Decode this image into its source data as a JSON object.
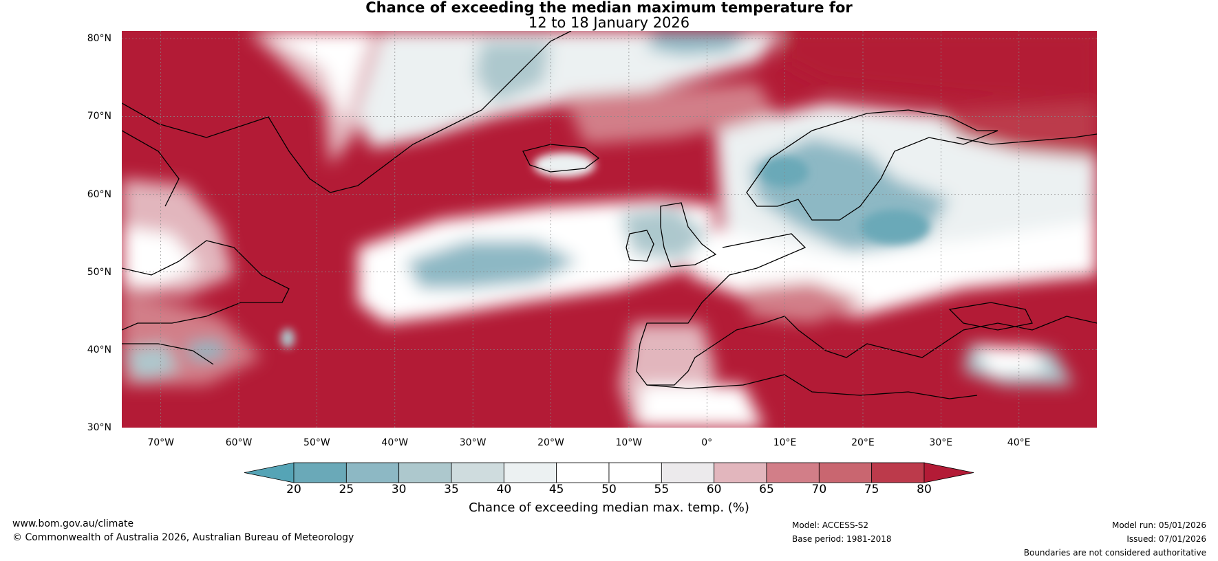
{
  "title": {
    "line1": "Chance of exceeding the median maximum temperature for",
    "line2": "12 to 18 January 2026"
  },
  "map": {
    "lat_labels": [
      "80°N",
      "70°N",
      "60°N",
      "50°N",
      "40°N",
      "30°N"
    ],
    "lon_labels": [
      "70°W",
      "60°W",
      "50°W",
      "40°W",
      "30°W",
      "20°W",
      "10°W",
      "0°",
      "10°E",
      "20°E",
      "30°E",
      "40°E"
    ],
    "lat_range": [
      30,
      81
    ],
    "lon_range": [
      -75,
      50
    ],
    "lat_ticks": [
      80,
      70,
      60,
      50,
      40,
      30
    ],
    "lon_ticks": [
      -70,
      -60,
      -50,
      -40,
      -30,
      -20,
      -10,
      0,
      10,
      20,
      30,
      40
    ]
  },
  "colorbar": {
    "title": "Chance of exceeding median max. temp. (%)",
    "tick_labels": [
      "20",
      "25",
      "30",
      "35",
      "40",
      "45",
      "50",
      "55",
      "60",
      "65",
      "70",
      "75",
      "80"
    ],
    "bin_colors": [
      "#6aa9b8",
      "#8db8c4",
      "#adc8cd",
      "#cfdcde",
      "#ecf1f2",
      "#ffffff",
      "#ffffff",
      "#eceaec",
      "#e2b6bd",
      "#d27e88",
      "#c96670",
      "#bc3a4b"
    ],
    "under_color": "#55a4b6",
    "over_color": "#b31b36"
  },
  "footer": {
    "website": "www.bom.gov.au/climate",
    "copyright": "© Commonwealth of Australia 2026, Australian Bureau of Meteorology",
    "model": "Model: ACCESS-S2",
    "base_period": "Base period: 1981-2018",
    "model_run": "Model run: 05/01/2026",
    "issued": "Issued: 07/01/2026",
    "disclaimer": "Boundaries are not considered authoritative"
  }
}
